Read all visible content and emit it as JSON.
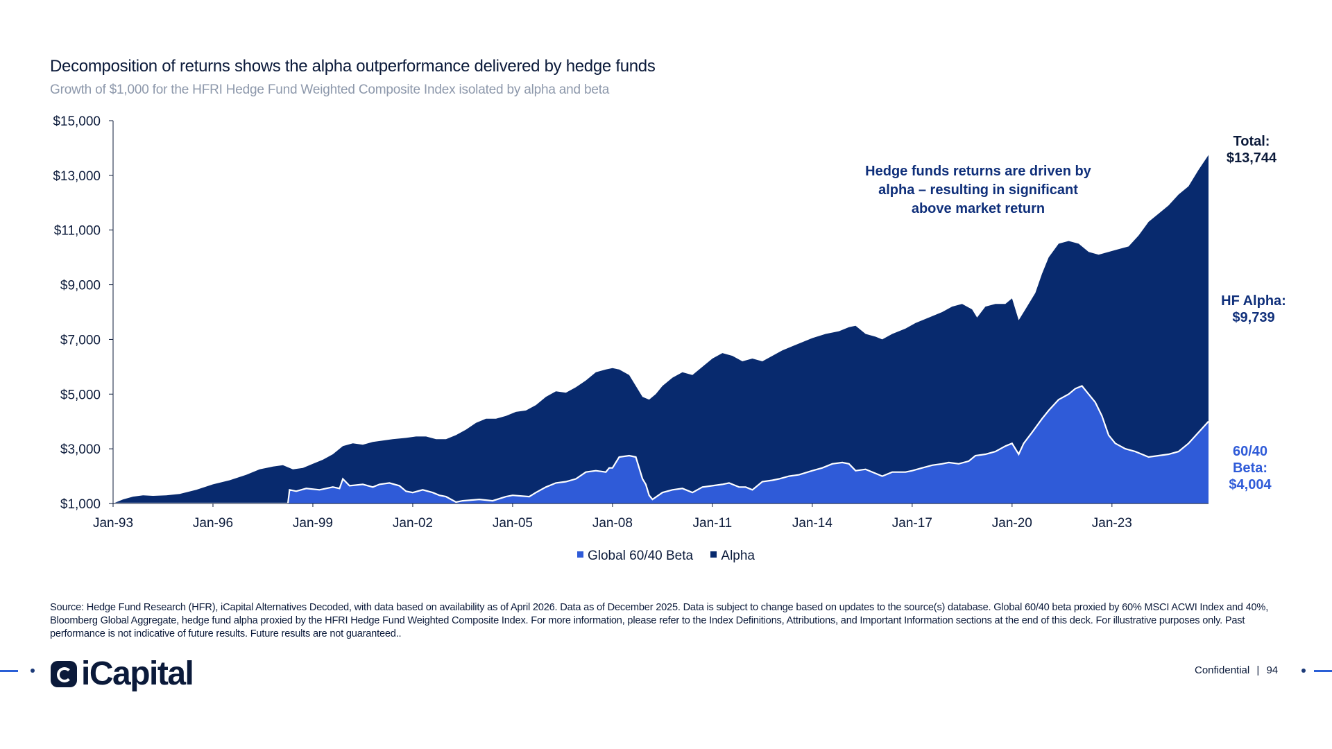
{
  "header": {
    "title": "Decomposition of returns shows the alpha outperformance delivered by hedge funds",
    "subtitle": "Growth of $1,000 for the HFRI Hedge Fund Weighted Composite Index isolated by alpha and beta"
  },
  "chart_data": {
    "type": "area",
    "stacked": true,
    "ylim": [
      1000,
      15000
    ],
    "y_ticks": [
      "$15,000",
      "$13,000",
      "$11,000",
      "$9,000",
      "$7,000",
      "$5,000",
      "$3,000",
      "$1,000"
    ],
    "y_tick_values": [
      15000,
      13000,
      11000,
      9000,
      7000,
      5000,
      3000,
      1000
    ],
    "x_range": [
      1993.0,
      2025.9
    ],
    "x_ticks": [
      "Jan-93",
      "Jan-96",
      "Jan-99",
      "Jan-02",
      "Jan-05",
      "Jan-08",
      "Jan-11",
      "Jan-14",
      "Jan-17",
      "Jan-20",
      "Jan-23"
    ],
    "x_tick_values": [
      1993,
      1996,
      1999,
      2002,
      2005,
      2008,
      2011,
      2014,
      2017,
      2020,
      2023
    ],
    "series": [
      {
        "name": "Global 60/40 Beta",
        "color": "#2f5bd8",
        "points": [
          [
            1993.0,
            1000
          ],
          [
            1998.0,
            1000
          ],
          [
            1998.25,
            1000
          ],
          [
            1998.3,
            1500
          ],
          [
            1998.5,
            1450
          ],
          [
            1998.8,
            1550
          ],
          [
            1999.2,
            1500
          ],
          [
            1999.6,
            1600
          ],
          [
            1999.8,
            1550
          ],
          [
            1999.9,
            1900
          ],
          [
            2000.1,
            1650
          ],
          [
            2000.5,
            1700
          ],
          [
            2000.8,
            1600
          ],
          [
            2001.0,
            1700
          ],
          [
            2001.3,
            1750
          ],
          [
            2001.6,
            1650
          ],
          [
            2001.8,
            1450
          ],
          [
            2002.0,
            1400
          ],
          [
            2002.3,
            1500
          ],
          [
            2002.6,
            1400
          ],
          [
            2002.8,
            1300
          ],
          [
            2003.0,
            1250
          ],
          [
            2003.3,
            1050
          ],
          [
            2003.5,
            1100
          ],
          [
            2004.0,
            1150
          ],
          [
            2004.4,
            1100
          ],
          [
            2004.8,
            1250
          ],
          [
            2005.0,
            1300
          ],
          [
            2005.5,
            1250
          ],
          [
            2005.7,
            1400
          ],
          [
            2006.0,
            1600
          ],
          [
            2006.3,
            1750
          ],
          [
            2006.6,
            1800
          ],
          [
            2006.9,
            1900
          ],
          [
            2007.2,
            2150
          ],
          [
            2007.5,
            2200
          ],
          [
            2007.8,
            2150
          ],
          [
            2007.9,
            2300
          ],
          [
            2008.0,
            2300
          ],
          [
            2008.2,
            2700
          ],
          [
            2008.5,
            2750
          ],
          [
            2008.7,
            2700
          ],
          [
            2008.9,
            1900
          ],
          [
            2009.0,
            1700
          ],
          [
            2009.1,
            1300
          ],
          [
            2009.2,
            1150
          ],
          [
            2009.5,
            1400
          ],
          [
            2009.8,
            1500
          ],
          [
            2010.1,
            1550
          ],
          [
            2010.4,
            1400
          ],
          [
            2010.7,
            1600
          ],
          [
            2011.0,
            1650
          ],
          [
            2011.3,
            1700
          ],
          [
            2011.5,
            1750
          ],
          [
            2011.8,
            1600
          ],
          [
            2012.0,
            1600
          ],
          [
            2012.2,
            1500
          ],
          [
            2012.5,
            1800
          ],
          [
            2012.8,
            1850
          ],
          [
            2013.0,
            1900
          ],
          [
            2013.3,
            2000
          ],
          [
            2013.6,
            2050
          ],
          [
            2014.0,
            2200
          ],
          [
            2014.3,
            2300
          ],
          [
            2014.6,
            2450
          ],
          [
            2014.9,
            2500
          ],
          [
            2015.1,
            2450
          ],
          [
            2015.3,
            2200
          ],
          [
            2015.6,
            2250
          ],
          [
            2015.9,
            2100
          ],
          [
            2016.1,
            2000
          ],
          [
            2016.4,
            2150
          ],
          [
            2016.8,
            2150
          ],
          [
            2017.0,
            2200
          ],
          [
            2017.3,
            2300
          ],
          [
            2017.6,
            2400
          ],
          [
            2017.9,
            2450
          ],
          [
            2018.1,
            2500
          ],
          [
            2018.4,
            2450
          ],
          [
            2018.7,
            2550
          ],
          [
            2018.9,
            2750
          ],
          [
            2019.2,
            2800
          ],
          [
            2019.5,
            2900
          ],
          [
            2019.8,
            3100
          ],
          [
            2020.0,
            3200
          ],
          [
            2020.2,
            2800
          ],
          [
            2020.35,
            3200
          ],
          [
            2020.6,
            3600
          ],
          [
            2020.9,
            4100
          ],
          [
            2021.1,
            4400
          ],
          [
            2021.4,
            4800
          ],
          [
            2021.7,
            5000
          ],
          [
            2021.9,
            5200
          ],
          [
            2022.1,
            5300
          ],
          [
            2022.3,
            5000
          ],
          [
            2022.5,
            4700
          ],
          [
            2022.7,
            4200
          ],
          [
            2022.9,
            3500
          ],
          [
            2023.1,
            3200
          ],
          [
            2023.4,
            3000
          ],
          [
            2023.7,
            2900
          ],
          [
            2023.9,
            2800
          ],
          [
            2024.1,
            2700
          ],
          [
            2024.4,
            2750
          ],
          [
            2024.7,
            2800
          ],
          [
            2025.0,
            2900
          ],
          [
            2025.3,
            3200
          ],
          [
            2025.6,
            3600
          ],
          [
            2025.9,
            4004
          ]
        ]
      },
      {
        "name": "Alpha",
        "color": "#082a6e",
        "points": [
          [
            1993.0,
            1000
          ],
          [
            1993.3,
            1150
          ],
          [
            1993.6,
            1250
          ],
          [
            1993.9,
            1300
          ],
          [
            1994.2,
            1280
          ],
          [
            1994.6,
            1300
          ],
          [
            1995.0,
            1350
          ],
          [
            1995.5,
            1500
          ],
          [
            1996.0,
            1700
          ],
          [
            1996.5,
            1850
          ],
          [
            1997.0,
            2050
          ],
          [
            1997.4,
            2250
          ],
          [
            1997.8,
            2350
          ],
          [
            1998.1,
            2400
          ],
          [
            1998.4,
            2250
          ],
          [
            1998.7,
            2300
          ],
          [
            1999.0,
            2450
          ],
          [
            1999.3,
            2600
          ],
          [
            1999.6,
            2800
          ],
          [
            1999.9,
            3100
          ],
          [
            2000.2,
            3200
          ],
          [
            2000.5,
            3150
          ],
          [
            2000.8,
            3250
          ],
          [
            2001.1,
            3300
          ],
          [
            2001.4,
            3350
          ],
          [
            2001.8,
            3400
          ],
          [
            2002.1,
            3450
          ],
          [
            2002.4,
            3450
          ],
          [
            2002.7,
            3350
          ],
          [
            2003.0,
            3350
          ],
          [
            2003.3,
            3500
          ],
          [
            2003.6,
            3700
          ],
          [
            2003.9,
            3950
          ],
          [
            2004.2,
            4100
          ],
          [
            2004.5,
            4100
          ],
          [
            2004.8,
            4200
          ],
          [
            2005.1,
            4350
          ],
          [
            2005.4,
            4400
          ],
          [
            2005.7,
            4600
          ],
          [
            2006.0,
            4900
          ],
          [
            2006.3,
            5100
          ],
          [
            2006.6,
            5050
          ],
          [
            2006.9,
            5250
          ],
          [
            2007.2,
            5500
          ],
          [
            2007.5,
            5800
          ],
          [
            2007.8,
            5900
          ],
          [
            2008.0,
            5950
          ],
          [
            2008.2,
            5900
          ],
          [
            2008.5,
            5700
          ],
          [
            2008.7,
            5300
          ],
          [
            2008.9,
            4900
          ],
          [
            2009.1,
            4800
          ],
          [
            2009.3,
            5000
          ],
          [
            2009.5,
            5300
          ],
          [
            2009.8,
            5600
          ],
          [
            2010.1,
            5800
          ],
          [
            2010.4,
            5700
          ],
          [
            2010.7,
            6000
          ],
          [
            2011.0,
            6300
          ],
          [
            2011.3,
            6500
          ],
          [
            2011.6,
            6400
          ],
          [
            2011.9,
            6200
          ],
          [
            2012.2,
            6300
          ],
          [
            2012.5,
            6200
          ],
          [
            2012.8,
            6400
          ],
          [
            2013.1,
            6600
          ],
          [
            2013.4,
            6750
          ],
          [
            2013.7,
            6900
          ],
          [
            2014.0,
            7050
          ],
          [
            2014.4,
            7200
          ],
          [
            2014.8,
            7300
          ],
          [
            2015.1,
            7450
          ],
          [
            2015.3,
            7500
          ],
          [
            2015.6,
            7200
          ],
          [
            2015.9,
            7100
          ],
          [
            2016.1,
            7000
          ],
          [
            2016.4,
            7200
          ],
          [
            2016.8,
            7400
          ],
          [
            2017.1,
            7600
          ],
          [
            2017.5,
            7800
          ],
          [
            2017.9,
            8000
          ],
          [
            2018.2,
            8200
          ],
          [
            2018.5,
            8300
          ],
          [
            2018.8,
            8100
          ],
          [
            2018.95,
            7800
          ],
          [
            2019.2,
            8200
          ],
          [
            2019.5,
            8300
          ],
          [
            2019.8,
            8300
          ],
          [
            2020.0,
            8500
          ],
          [
            2020.2,
            7700
          ],
          [
            2020.4,
            8100
          ],
          [
            2020.7,
            8700
          ],
          [
            2020.9,
            9400
          ],
          [
            2021.1,
            10000
          ],
          [
            2021.4,
            10500
          ],
          [
            2021.7,
            10600
          ],
          [
            2022.0,
            10500
          ],
          [
            2022.3,
            10200
          ],
          [
            2022.6,
            10100
          ],
          [
            2022.9,
            10200
          ],
          [
            2023.2,
            10300
          ],
          [
            2023.5,
            10400
          ],
          [
            2023.8,
            10800
          ],
          [
            2024.1,
            11300
          ],
          [
            2024.4,
            11600
          ],
          [
            2024.7,
            11900
          ],
          [
            2025.0,
            12300
          ],
          [
            2025.3,
            12600
          ],
          [
            2025.6,
            13200
          ],
          [
            2025.9,
            13744
          ]
        ]
      }
    ],
    "annotations": {
      "message": [
        "Hedge funds returns are driven by",
        "alpha – resulting in significant",
        "above market return"
      ],
      "total": [
        "Total:",
        "$13,744"
      ],
      "alpha": [
        "HF Alpha:",
        "$9,739"
      ],
      "beta": [
        "60/40",
        "Beta:",
        "$4,004"
      ]
    },
    "legend": {
      "placement": "bottom-center",
      "items": [
        {
          "label": "Global 60/40 Beta",
          "color": "#2f5bd8"
        },
        {
          "label": "Alpha",
          "color": "#082a6e"
        }
      ]
    }
  },
  "source_text": "Source: Hedge Fund Research (HFR), iCapital Alternatives Decoded, with data based on availability as of April 2026. Data as of December 2025. Data is subject to change based on updates to the source(s) database. Global 60/40 beta proxied by 60% MSCI ACWI Index and 40%, Bloomberg Global Aggregate, hedge fund alpha proxied by the HFRI Hedge Fund Weighted Composite Index. For more information, please refer to the Index Definitions, Attributions, and Important Information sections at the end of this deck. For illustrative purposes only. Past performance is not indicative of future results. Future results are not guaranteed..",
  "footer": {
    "logo_text": "iCapital",
    "confidential": "Confidential",
    "separator": "|",
    "page_number": "94"
  },
  "colors": {
    "navy": "#082a6e",
    "blue": "#2f5bd8",
    "accent_line": "#2a5fd6"
  }
}
